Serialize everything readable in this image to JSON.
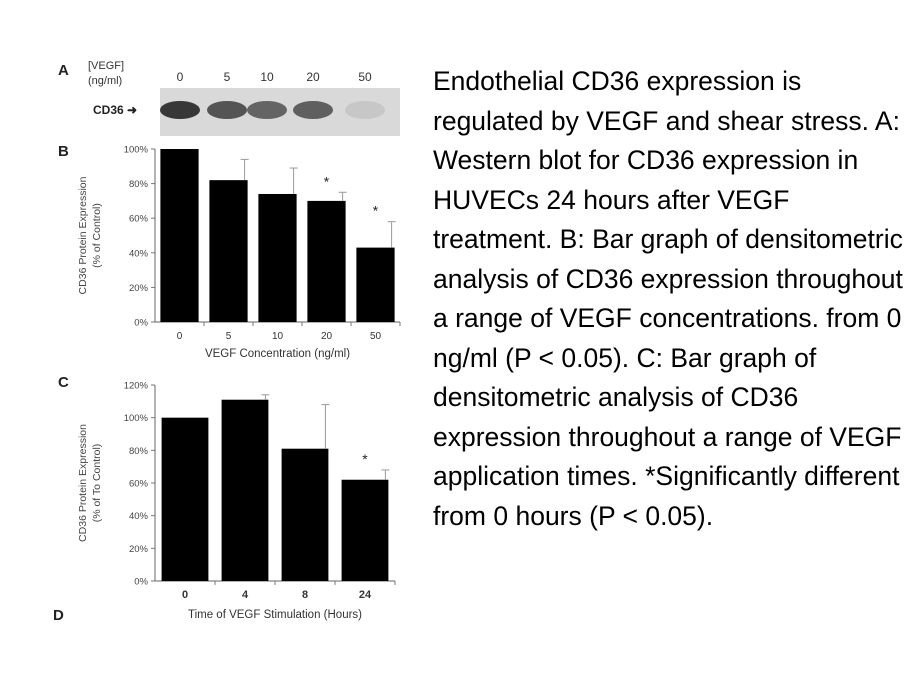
{
  "panels": {
    "a": "A",
    "b": "B",
    "c": "C",
    "d": "D"
  },
  "blot": {
    "header_line1": "[VEGF]",
    "header_line2": "(ng/ml)",
    "lanes": [
      "0",
      "5",
      "10",
      "20",
      "50"
    ],
    "band_label": "CD36",
    "band_intensity": [
      1.0,
      0.82,
      0.72,
      0.75,
      0.1
    ]
  },
  "caption": "Endothelial CD36 expression is regulated by VEGF and shear stress. A: Western blot for CD36 expression in HUVECs 24 hours after VEGF treatment. B: Bar graph of densitometric analysis of CD36 expression throughout a range of VEGF concentrations. from 0 ng/ml (P < 0.05). C: Bar graph of densitometric analysis of CD36 expression throughout a range of VEGF application times. *Significantly different from 0 hours (P < 0.05).",
  "chart_data": [
    {
      "type": "bar",
      "categories": [
        "0",
        "5",
        "10",
        "20",
        "50"
      ],
      "values": [
        100,
        82,
        74,
        70,
        43
      ],
      "errors": [
        0,
        12,
        15,
        5,
        15
      ],
      "significant": [
        false,
        false,
        false,
        true,
        true
      ],
      "significance_marker": "*",
      "xlabel": "VEGF Concentration (ng/ml)",
      "ylabel_line1": "CD36 Protein Expression",
      "ylabel_line2": "(% of Control)",
      "ylim": [
        0,
        100
      ],
      "yticks": [
        "0%",
        "20%",
        "40%",
        "60%",
        "80%",
        "100%"
      ],
      "bar_color": "#000000"
    },
    {
      "type": "bar",
      "categories": [
        "0",
        "4",
        "8",
        "24"
      ],
      "values": [
        100,
        111,
        81,
        62
      ],
      "errors": [
        0,
        3,
        27,
        6
      ],
      "significant": [
        false,
        false,
        false,
        true
      ],
      "significance_marker": "*",
      "xlabel": "Time of VEGF Stimulation (Hours)",
      "ylabel_line1": "CD36 Protein Expression",
      "ylabel_line2": "(% of To Control)",
      "ylim": [
        0,
        120
      ],
      "yticks": [
        "0%",
        "20%",
        "40%",
        "60%",
        "80%",
        "100%",
        "120%"
      ],
      "bar_color": "#000000"
    }
  ]
}
